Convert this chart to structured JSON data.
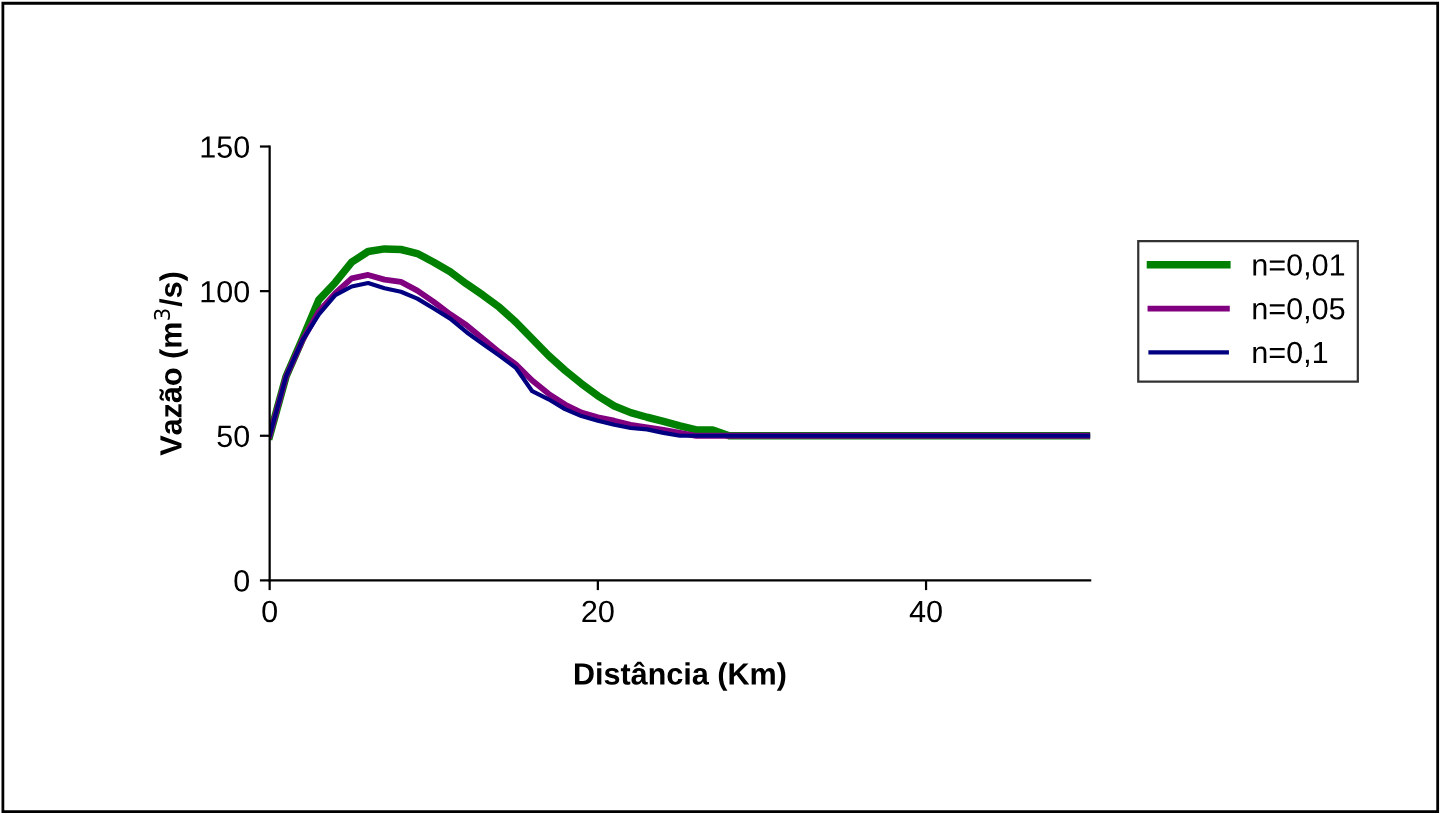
{
  "chart_data": {
    "type": "line",
    "xlabel": "Distância (Km)",
    "ylabel": "Vazão (m$^{3}$/s)",
    "xlim": [
      0,
      50
    ],
    "xticks": [
      0,
      20,
      40
    ],
    "ylim": [
      0,
      150
    ],
    "yticks": [
      0,
      50,
      100,
      150
    ],
    "grid": false,
    "legend": "right",
    "marker": "none",
    "line_style": "solid",
    "series": [
      {
        "name": "n=0,01",
        "color": "#008000",
        "x": [
          0,
          1,
          2,
          3,
          4,
          5,
          6,
          7,
          8,
          9,
          10,
          11,
          12,
          13,
          14,
          15,
          16,
          17,
          18,
          19,
          20,
          21,
          22,
          23,
          24,
          25,
          26,
          27,
          28,
          50
        ],
        "values": [
          50,
          70.5,
          83.5,
          97,
          103,
          110,
          113.7,
          114.6,
          114.4,
          113,
          110,
          106.7,
          102.5,
          98.6,
          94.4,
          89.3,
          83.5,
          77.7,
          72.6,
          68,
          63.8,
          60.3,
          58,
          56.4,
          55,
          53.4,
          52,
          52,
          50,
          50
        ]
      },
      {
        "name": "n=0,05",
        "color": "#800080",
        "x": [
          0,
          1,
          2,
          3,
          4,
          5,
          6,
          7,
          8,
          9,
          10,
          11,
          12,
          13,
          14,
          15,
          16,
          17,
          18,
          19,
          20,
          21,
          22,
          23,
          24,
          25,
          26,
          50
        ],
        "values": [
          50,
          70.5,
          83,
          93,
          99.3,
          104.4,
          105.6,
          104,
          103.2,
          100.2,
          96.3,
          92,
          88.2,
          83.5,
          78.9,
          74.7,
          69.1,
          64.5,
          60.8,
          58,
          56.4,
          55.2,
          53.8,
          52.9,
          52,
          51,
          50,
          50
        ]
      },
      {
        "name": "n=0,1",
        "color": "#000080",
        "x": [
          0,
          1,
          2,
          3,
          4,
          5,
          6,
          7,
          8,
          9,
          10,
          11,
          12,
          13,
          14,
          15,
          16,
          17,
          18,
          19,
          20,
          21,
          22,
          23,
          24,
          25,
          50
        ],
        "values": [
          50,
          70.5,
          83,
          92,
          98.6,
          101.6,
          102.8,
          101,
          99.8,
          97.4,
          94,
          90.5,
          85.8,
          81.7,
          77.7,
          73.5,
          65.4,
          62.6,
          59.2,
          56.8,
          55.2,
          53.8,
          52.7,
          52.2,
          51,
          50,
          50
        ]
      }
    ]
  }
}
